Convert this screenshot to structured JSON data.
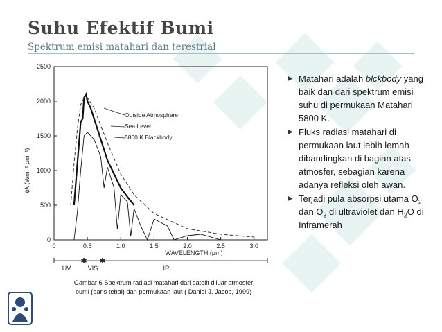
{
  "slide": {
    "title": "Suhu Efektif Bumi",
    "subtitle": "Spektrum emisi matahari dan terestrial"
  },
  "figure": {
    "y_axis_label": "ϕλ (Wm⁻² μm⁻¹)",
    "x_axis_label": "WAVELENGTH (μm)",
    "y_ticks": [
      "0",
      "500",
      "1000",
      "1500",
      "2000",
      "2500"
    ],
    "x_ticks": [
      "0",
      "0.5",
      "1.0",
      "1.5",
      "2.0",
      "2.5",
      "3.0"
    ],
    "legend": [
      "Outside Atmosphere",
      "Sea Level",
      "5800 K Blackbody"
    ],
    "bands": [
      "UV",
      "VIS",
      "IR"
    ],
    "caption_line1": "Gambar 6 Spektrum  radiasi matahari dari satelit diluar atmosfer",
    "caption_line2": "bumi (garis tebal) dan permukaan laut ( Daniel J. Jacob, 1999)"
  },
  "chart_data": {
    "type": "line",
    "xlabel": "WAVELENGTH (μm)",
    "ylabel": "ϕλ (Wm⁻² μm⁻¹)",
    "xlim": [
      0,
      3.2
    ],
    "ylim": [
      0,
      2500
    ],
    "series": [
      {
        "name": "Outside Atmosphere",
        "x": [
          0.3,
          0.35,
          0.4,
          0.43,
          0.45,
          0.48,
          0.5,
          0.55,
          0.6,
          0.7,
          0.8,
          0.9,
          1.0,
          1.1,
          1.2
        ],
        "y": [
          500,
          1100,
          1700,
          1750,
          2050,
          2100,
          2000,
          1900,
          1750,
          1450,
          1150,
          950,
          750,
          620,
          500
        ]
      },
      {
        "name": "Sea Level",
        "x": [
          0.3,
          0.35,
          0.4,
          0.45,
          0.5,
          0.55,
          0.6,
          0.7,
          0.75,
          0.8,
          0.9,
          0.95,
          1.0,
          1.1,
          1.15,
          1.2,
          1.3,
          1.4,
          1.5,
          1.6,
          1.7,
          1.8,
          2.0,
          2.2,
          2.5
        ],
        "y": [
          0,
          400,
          1000,
          1500,
          1550,
          1500,
          1450,
          1200,
          750,
          1050,
          750,
          150,
          650,
          550,
          50,
          450,
          200,
          0,
          300,
          250,
          200,
          0,
          60,
          80,
          0
        ]
      },
      {
        "name": "5800 K Blackbody",
        "x": [
          0.25,
          0.3,
          0.35,
          0.4,
          0.45,
          0.5,
          0.6,
          0.7,
          0.8,
          1.0,
          1.2,
          1.5,
          2.0,
          2.5,
          3.0
        ],
        "y": [
          500,
          1100,
          1600,
          1950,
          2050,
          2050,
          1900,
          1650,
          1400,
          950,
          650,
          380,
          160,
          80,
          40
        ]
      }
    ]
  },
  "bullets": {
    "b1_pre": "Matahari adalah ",
    "b1_italic": "blckbody",
    "b1_post": " yang baik dan dari spektrum emisi suhu di permukaan Matahari 5800 K.",
    "b2": "Fluks radiasi matahari  di permukaan laut lebih lemah dibandingkan di bagian atas atmosfer, sebagian karena adanya refleksi oleh awan.",
    "b3_a": "Terjadi pula absorpsi utama O",
    "b3_sub1": "2",
    "b3_b": " dan O",
    "b3_sub2": "3",
    "b3_c": " di ultraviolet dan H",
    "b3_sub3": "2",
    "b3_d": "O di Inframerah"
  },
  "colors": {
    "title": "#454545",
    "subtitle": "#5a7a86",
    "rule": "#9fbfc7",
    "decoration": "#e6f3f1"
  },
  "icons": [
    "arrow-bullet-icon",
    "itb-logo-icon"
  ]
}
